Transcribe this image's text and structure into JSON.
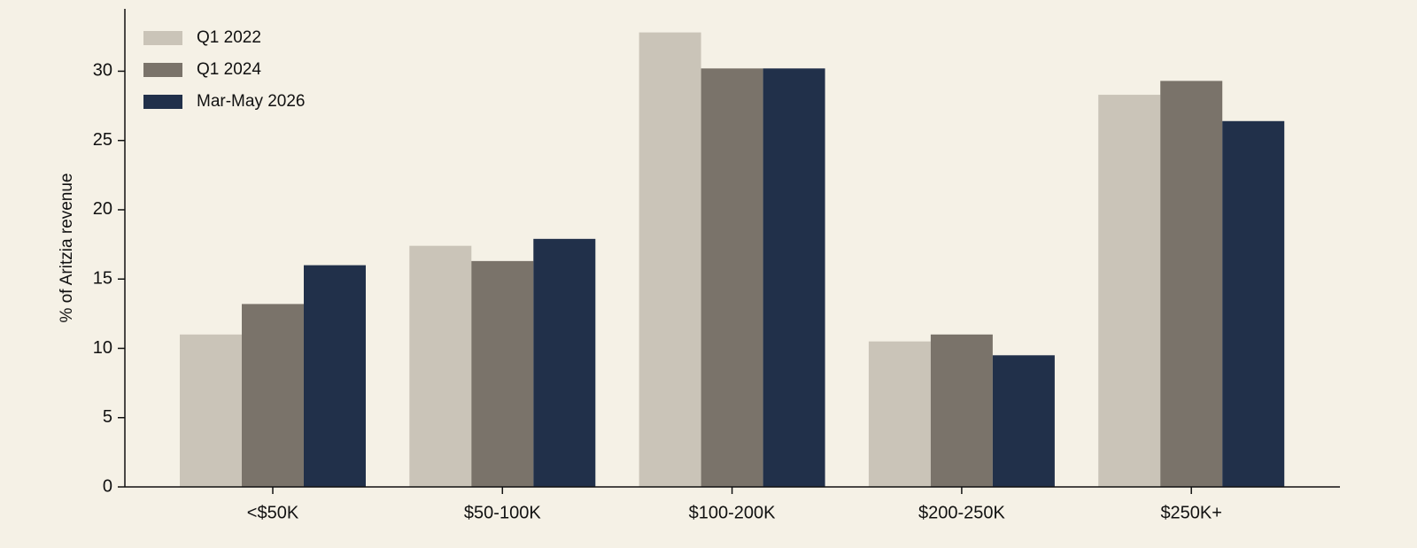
{
  "chart_data": {
    "type": "bar",
    "y_label": "% of Aritzia revenue",
    "categories": [
      "<$50K",
      "$50-100K",
      "$100-200K",
      "$200-250K",
      "$250K+"
    ],
    "series": [
      {
        "name": "Q1 2022",
        "color": "#cac4b8",
        "values": [
          11.0,
          17.4,
          32.8,
          10.5,
          28.3
        ]
      },
      {
        "name": "Q1 2024",
        "color": "#7a736a",
        "values": [
          13.2,
          16.3,
          30.2,
          11.0,
          29.3
        ]
      },
      {
        "name": "Mar-May 2026",
        "color": "#21304a",
        "values": [
          16.0,
          17.9,
          30.2,
          9.5,
          26.4
        ]
      }
    ],
    "ylim": [
      0,
      34.5
    ],
    "yticks": [
      0,
      5,
      10,
      15,
      20,
      25,
      30
    ],
    "legend": "upper left"
  }
}
